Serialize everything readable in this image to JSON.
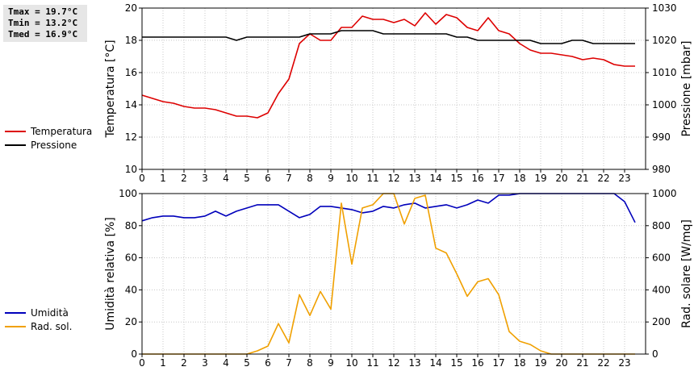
{
  "stats": {
    "tmax": "Tmax = 19.7°C",
    "tmin": "Tmin = 13.2°C",
    "tmed": "Tmed = 16.9°C"
  },
  "legend_top": [
    {
      "label": "Temperatura",
      "color": "#dd0000"
    },
    {
      "label": "Pressione",
      "color": "#000000"
    }
  ],
  "legend_bottom": [
    {
      "label": "Umidità",
      "color": "#0000bb"
    },
    {
      "label": "Rad. sol.",
      "color": "#f0a000"
    }
  ],
  "chart_data": [
    {
      "type": "line",
      "xlim": [
        0,
        24
      ],
      "x_ticks": [
        0,
        1,
        2,
        3,
        4,
        5,
        6,
        7,
        8,
        9,
        10,
        11,
        12,
        13,
        14,
        15,
        16,
        17,
        18,
        19,
        20,
        21,
        22,
        23
      ],
      "ylabel": "Temperatura [°C]",
      "ylim": [
        10,
        20
      ],
      "y_ticks": [
        10,
        12,
        14,
        16,
        18,
        20
      ],
      "y2label": "Pressione [mbar]",
      "y2lim": [
        980,
        1030
      ],
      "y2_ticks": [
        980,
        990,
        1000,
        1010,
        1020,
        1030
      ],
      "grid": true,
      "series": [
        {
          "name": "Temperatura",
          "axis": "left",
          "color": "#dd0000",
          "x": [
            0,
            0.5,
            1,
            1.5,
            2,
            2.5,
            3,
            3.5,
            4,
            4.5,
            5,
            5.5,
            6,
            6.5,
            7,
            7.5,
            8,
            8.5,
            9,
            9.5,
            10,
            10.5,
            11,
            11.5,
            12,
            12.5,
            13,
            13.5,
            14,
            14.5,
            15,
            15.5,
            16,
            16.5,
            17,
            17.5,
            18,
            18.5,
            19,
            19.5,
            20,
            20.5,
            21,
            21.5,
            22,
            22.5,
            23,
            23.5
          ],
          "y": [
            14.6,
            14.4,
            14.2,
            14.1,
            13.9,
            13.8,
            13.8,
            13.7,
            13.5,
            13.3,
            13.3,
            13.2,
            13.5,
            14.7,
            15.6,
            17.8,
            18.4,
            18.0,
            18.0,
            18.8,
            18.8,
            19.5,
            19.3,
            19.3,
            19.1,
            19.3,
            18.9,
            19.7,
            19.0,
            19.6,
            19.4,
            18.8,
            18.6,
            19.4,
            18.6,
            18.4,
            17.8,
            17.4,
            17.2,
            17.2,
            17.1,
            17.0,
            16.8,
            16.9,
            16.8,
            16.5,
            16.4,
            16.4
          ]
        },
        {
          "name": "Pressione",
          "axis": "right",
          "color": "#000000",
          "x": [
            0,
            0.5,
            1,
            1.5,
            2,
            2.5,
            3,
            3.5,
            4,
            4.5,
            5,
            5.5,
            6,
            6.5,
            7,
            7.5,
            8,
            8.5,
            9,
            9.5,
            10,
            10.5,
            11,
            11.5,
            12,
            12.5,
            13,
            13.5,
            14,
            14.5,
            15,
            15.5,
            16,
            16.5,
            17,
            17.5,
            18,
            18.5,
            19,
            19.5,
            20,
            20.5,
            21,
            21.5,
            22,
            22.5,
            23,
            23.5
          ],
          "y": [
            1021,
            1021,
            1021,
            1021,
            1021,
            1021,
            1021,
            1021,
            1021,
            1020,
            1021,
            1021,
            1021,
            1021,
            1021,
            1021,
            1022,
            1022,
            1022,
            1023,
            1023,
            1023,
            1023,
            1022,
            1022,
            1022,
            1022,
            1022,
            1022,
            1022,
            1021,
            1021,
            1020,
            1020,
            1020,
            1020,
            1020,
            1020,
            1019,
            1019,
            1019,
            1020,
            1020,
            1019,
            1019,
            1019,
            1019,
            1019
          ]
        }
      ]
    },
    {
      "type": "line",
      "xlim": [
        0,
        24
      ],
      "x_ticks": [
        0,
        1,
        2,
        3,
        4,
        5,
        6,
        7,
        8,
        9,
        10,
        11,
        12,
        13,
        14,
        15,
        16,
        17,
        18,
        19,
        20,
        21,
        22,
        23
      ],
      "ylabel": "Umidità relativa [%]",
      "ylim": [
        0,
        100
      ],
      "y_ticks": [
        0,
        20,
        40,
        60,
        80,
        100
      ],
      "y2label": "Rad. solare [W/mq]",
      "y2lim": [
        0,
        1000
      ],
      "y2_ticks": [
        0,
        200,
        400,
        600,
        800,
        1000
      ],
      "grid": true,
      "series": [
        {
          "name": "Umidità",
          "axis": "left",
          "color": "#0000bb",
          "x": [
            0,
            0.5,
            1,
            1.5,
            2,
            2.5,
            3,
            3.5,
            4,
            4.5,
            5,
            5.5,
            6,
            6.5,
            7,
            7.5,
            8,
            8.5,
            9,
            9.5,
            10,
            10.5,
            11,
            11.5,
            12,
            12.5,
            13,
            13.5,
            14,
            14.5,
            15,
            15.5,
            16,
            16.5,
            17,
            17.5,
            18,
            18.5,
            19,
            19.5,
            20,
            20.5,
            21,
            21.5,
            22,
            22.5,
            23,
            23.5
          ],
          "y": [
            83,
            85,
            86,
            86,
            85,
            85,
            86,
            89,
            86,
            89,
            91,
            93,
            93,
            93,
            89,
            85,
            87,
            92,
            92,
            91,
            90,
            88,
            89,
            92,
            91,
            93,
            94,
            91,
            92,
            93,
            91,
            93,
            96,
            94,
            99,
            99,
            100,
            100,
            100,
            100,
            100,
            100,
            100,
            100,
            100,
            100,
            95,
            82
          ]
        },
        {
          "name": "Rad. sol.",
          "axis": "right",
          "color": "#f0a000",
          "x": [
            0,
            0.5,
            1,
            1.5,
            2,
            2.5,
            3,
            3.5,
            4,
            4.5,
            5,
            5.5,
            6,
            6.5,
            7,
            7.5,
            8,
            8.5,
            9,
            9.5,
            10,
            10.5,
            11,
            11.5,
            12,
            12.5,
            13,
            13.5,
            14,
            14.5,
            15,
            15.5,
            16,
            16.5,
            17,
            17.5,
            18,
            18.5,
            19,
            19.5,
            20,
            20.5,
            21,
            21.5,
            22,
            22.5,
            23,
            23.5
          ],
          "y": [
            0,
            0,
            0,
            0,
            0,
            0,
            0,
            0,
            0,
            0,
            0,
            20,
            50,
            190,
            70,
            370,
            240,
            390,
            280,
            940,
            560,
            910,
            930,
            1000,
            1000,
            810,
            970,
            990,
            660,
            630,
            500,
            360,
            450,
            470,
            370,
            140,
            80,
            60,
            20,
            0,
            0,
            0,
            0,
            0,
            0,
            0,
            0,
            0
          ]
        }
      ]
    }
  ]
}
